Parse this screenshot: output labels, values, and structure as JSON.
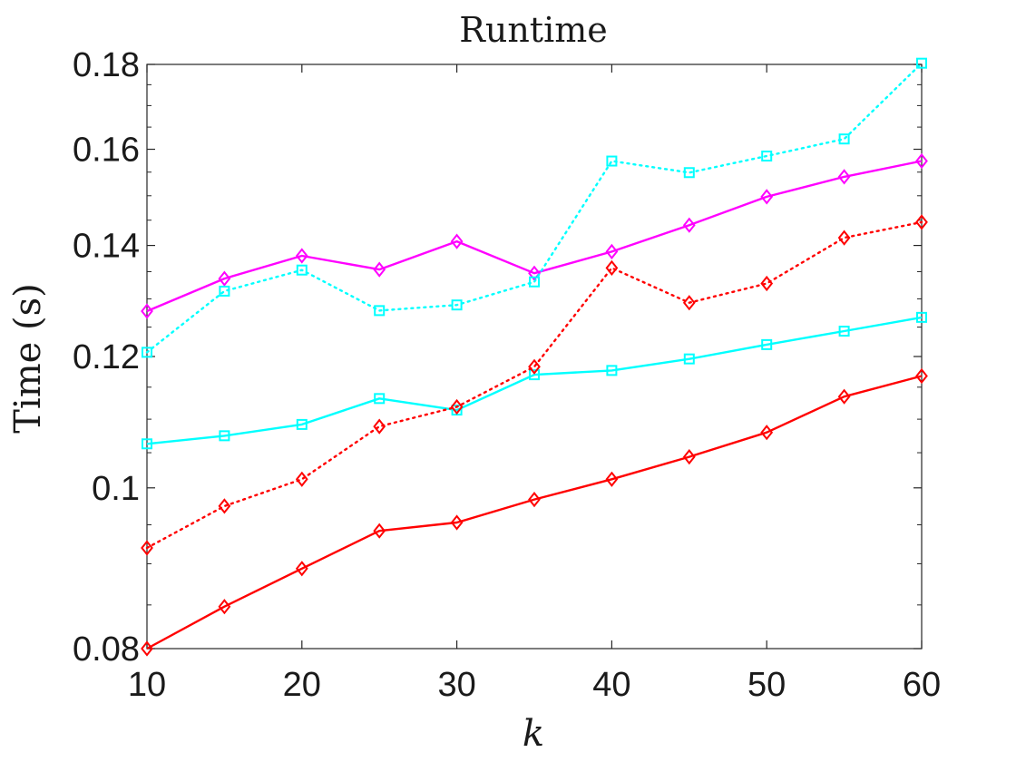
{
  "chart_data": {
    "type": "line",
    "title": "Runtime",
    "xlabel": "k",
    "ylabel": "Time (s)",
    "xlim": [
      10,
      60
    ],
    "ylim": [
      0.08,
      0.18
    ],
    "yscale": "log",
    "grid": false,
    "x": [
      10,
      15,
      20,
      25,
      30,
      35,
      40,
      45,
      50,
      55,
      60
    ],
    "xticks": [
      "10",
      "20",
      "30",
      "40",
      "50",
      "60"
    ],
    "yticks": [
      "0.08",
      "0.1",
      "0.12",
      "0.14",
      "0.16",
      "0.18"
    ],
    "series": [
      {
        "color": "#ff00ff",
        "line_style": "solid",
        "marker": "diamond",
        "values": [
          0.1278,
          0.1337,
          0.138,
          0.1354,
          0.1408,
          0.1347,
          0.1388,
          0.144,
          0.1498,
          0.154,
          0.1574
        ]
      },
      {
        "color": "#00ffff",
        "line_style": "dotted",
        "marker": "square",
        "values": [
          0.1207,
          0.1314,
          0.1353,
          0.1279,
          0.1289,
          0.1331,
          0.1574,
          0.1549,
          0.1585,
          0.1623,
          0.1803
        ]
      },
      {
        "color": "#00ffff",
        "line_style": "solid",
        "marker": "square",
        "values": [
          0.1063,
          0.1075,
          0.1092,
          0.1132,
          0.1114,
          0.117,
          0.1177,
          0.1196,
          0.122,
          0.1243,
          0.1267
        ]
      },
      {
        "color": "#ff0000",
        "line_style": "dotted",
        "marker": "diamond",
        "values": [
          0.092,
          0.0975,
          0.1012,
          0.1089,
          0.1119,
          0.1183,
          0.1357,
          0.1293,
          0.1328,
          0.1415,
          0.1446
        ]
      },
      {
        "color": "#ff0000",
        "line_style": "solid",
        "marker": "diamond",
        "values": [
          0.08,
          0.0848,
          0.0894,
          0.0942,
          0.0953,
          0.0984,
          0.1012,
          0.1044,
          0.108,
          0.1135,
          0.1168
        ]
      }
    ]
  }
}
